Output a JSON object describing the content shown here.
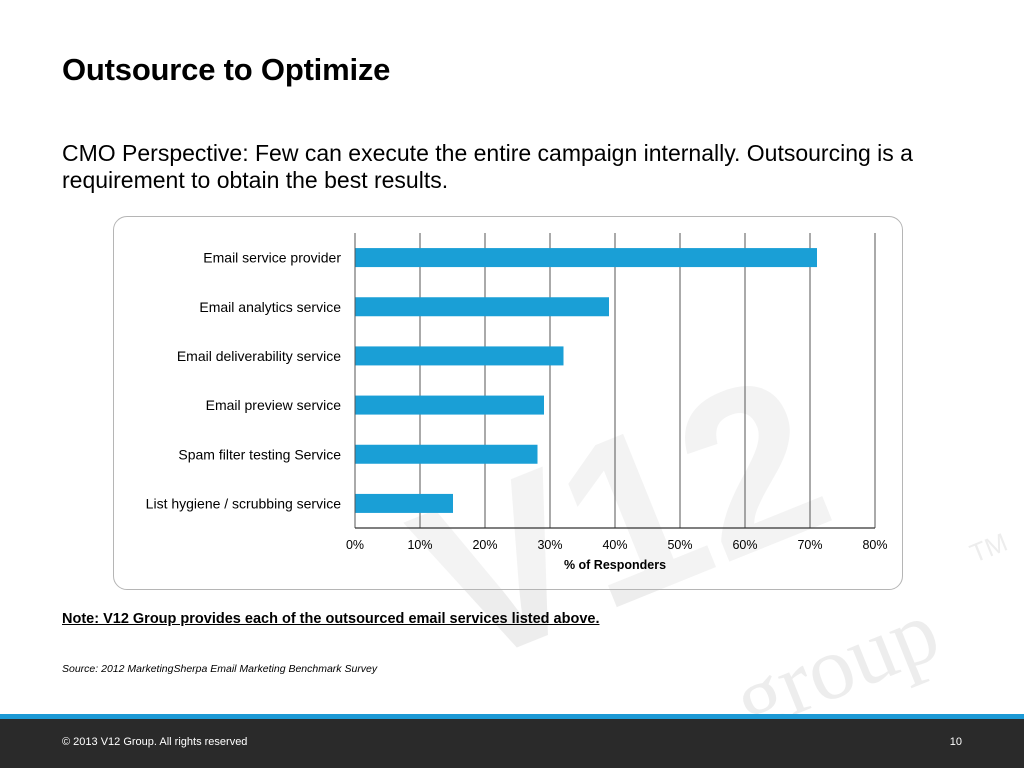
{
  "slide": {
    "title": "Outsource to Optimize",
    "subtitle": "CMO Perspective: Few can execute the entire campaign internally.  Outsourcing is a requirement to obtain the best results.",
    "note": "Note: V12 Group provides each of the outsourced email services listed above.",
    "source": "Source: 2012 MarketingSherpa Email Marketing Benchmark Survey"
  },
  "watermark": {
    "logo_text": "V12",
    "brand_text": "group",
    "tm": "TM"
  },
  "footer": {
    "copyright": "© 2013 V12 Group. All rights reserved",
    "page_number": "10"
  },
  "colors": {
    "bar": "#1a9fd6",
    "footer_bg": "#2a2a2a",
    "footer_accent": "#1c9ad6",
    "grid": "#555555"
  },
  "chart_data": {
    "type": "bar",
    "orientation": "horizontal",
    "categories": [
      "Email service provider",
      "Email analytics service",
      "Email deliverability service",
      "Email preview service",
      "Spam filter testing Service",
      "List hygiene / scrubbing service"
    ],
    "values": [
      71,
      39,
      32,
      29,
      28,
      15
    ],
    "xlabel": "% of Responders",
    "xlim": [
      0,
      80
    ],
    "xticks": [
      "0%",
      "10%",
      "20%",
      "30%",
      "40%",
      "50%",
      "60%",
      "70%",
      "80%"
    ],
    "grid": true,
    "legend": "none"
  }
}
